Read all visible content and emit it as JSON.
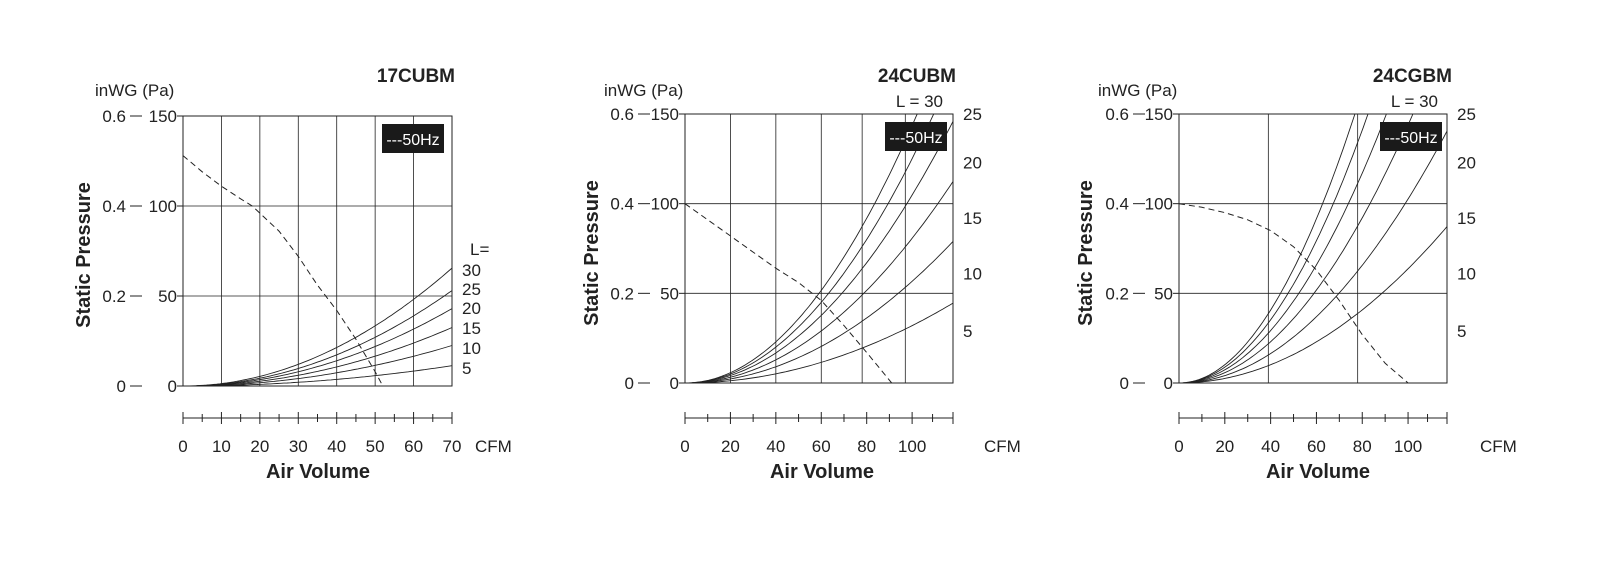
{
  "colors": {
    "ink": "#222222",
    "legend_bg": "#1a1a1a",
    "legend_text": "#ffffff"
  },
  "chart_data": [
    {
      "type": "line",
      "title": "17CUBM",
      "xlabel": "Air Volume",
      "xunit": "CFM",
      "ylabel": "Static Pressure",
      "yunit": "inWG (Pa)",
      "xlim": [
        0,
        70
      ],
      "ylim_pa": [
        0,
        150
      ],
      "x_ticks": [
        0,
        10,
        20,
        30,
        40,
        50,
        60,
        70
      ],
      "x_tick_labels": [
        "0",
        "10",
        "20",
        "30",
        "40",
        "50",
        "60",
        "70"
      ],
      "y_ticks_pa": [
        0,
        50,
        100,
        150
      ],
      "y_tick_labels_pa": [
        "0",
        "50",
        "100",
        "150"
      ],
      "y_tick_labels_inwg": [
        "0",
        "0.2",
        "0.4",
        "0.6"
      ],
      "v_grid": [
        10,
        20,
        30,
        40,
        50,
        60
      ],
      "legend": "---50Hz",
      "l_header": "L=",
      "fan_curve": {
        "name": "50Hz",
        "style": "dashed",
        "x": [
          0,
          5,
          10,
          15,
          18,
          20,
          25,
          30,
          35,
          40,
          45,
          50,
          52
        ],
        "y": [
          128,
          119,
          111,
          104,
          100,
          96,
          86,
          72,
          56,
          42,
          26,
          8,
          0
        ]
      },
      "system_curves": [
        {
          "label": "30",
          "k": 0.01337
        },
        {
          "label": "25",
          "k": 0.01082
        },
        {
          "label": "20",
          "k": 0.00878
        },
        {
          "label": "15",
          "k": 0.00663
        },
        {
          "label": "10",
          "k": 0.00459
        },
        {
          "label": "5",
          "k": 0.0023
        }
      ]
    },
    {
      "type": "line",
      "title": "24CUBM",
      "xlabel": "Air Volume",
      "xunit": "CFM",
      "ylabel": "Static Pressure",
      "yunit": "inWG (Pa)",
      "xlim": [
        0,
        118
      ],
      "ylim_pa": [
        0,
        150
      ],
      "x_ticks": [
        0,
        20,
        40,
        60,
        80,
        100
      ],
      "x_tick_labels": [
        "0",
        "20",
        "40",
        "60",
        "80",
        "100"
      ],
      "y_ticks_pa": [
        0,
        50,
        100,
        150
      ],
      "y_tick_labels_pa": [
        "0",
        "50",
        "100",
        "150"
      ],
      "y_tick_labels_inwg": [
        "0",
        "0.2",
        "0.4",
        "0.6"
      ],
      "v_grid": [
        20,
        40,
        60,
        78,
        97
      ],
      "legend": "---50Hz",
      "l_header": "L = 30",
      "fan_curve": {
        "name": "50Hz",
        "style": "dashed",
        "x": [
          0,
          10,
          20,
          30,
          40,
          50,
          60,
          70,
          80,
          91
        ],
        "y": [
          100,
          91,
          82,
          73,
          64,
          56,
          46,
          32,
          17,
          0
        ]
      },
      "system_curves": [
        {
          "label": "30",
          "k": 0.01435
        },
        {
          "label": "25",
          "k": 0.01251
        },
        {
          "label": "20",
          "k": 0.01048
        },
        {
          "label": "15",
          "k": 0.00807
        },
        {
          "label": "10",
          "k": 0.00567
        },
        {
          "label": "5",
          "k": 0.0032
        }
      ],
      "right_labels": [
        {
          "text": "25",
          "y": 150
        },
        {
          "text": "20",
          "y": 123
        },
        {
          "text": "15",
          "y": 92
        },
        {
          "text": "10",
          "y": 61
        },
        {
          "text": "5",
          "y": 29
        }
      ]
    },
    {
      "type": "line",
      "title": "24CGBM",
      "xlabel": "Air Volume",
      "xunit": "CFM",
      "ylabel": "Static Pressure",
      "yunit": "inWG (Pa)",
      "xlim": [
        0,
        117
      ],
      "ylim_pa": [
        0,
        150
      ],
      "x_ticks": [
        0,
        20,
        40,
        60,
        80,
        100
      ],
      "x_tick_labels": [
        "0",
        "20",
        "40",
        "60",
        "80",
        "100"
      ],
      "y_ticks_pa": [
        0,
        50,
        100,
        150
      ],
      "y_tick_labels_pa": [
        "0",
        "50",
        "100",
        "150"
      ],
      "y_tick_labels_inwg": [
        "0",
        "0.2",
        "0.4",
        "0.6"
      ],
      "v_grid": [
        39,
        78
      ],
      "legend": "---50Hz",
      "l_header": "L = 30",
      "fan_curve": {
        "name": "50Hz",
        "style": "dashed",
        "x": [
          0,
          10,
          20,
          30,
          40,
          50,
          60,
          70,
          80,
          90,
          100
        ],
        "y": [
          100,
          98,
          95,
          91,
          85,
          76,
          63,
          46,
          27,
          11,
          0
        ]
      },
      "system_curves": [
        {
          "label": "30",
          "k": 0.02544
        },
        {
          "label": "25",
          "k": 0.02204
        },
        {
          "label": "20",
          "k": 0.01829
        },
        {
          "label": "15",
          "k": 0.01439
        },
        {
          "label": "10",
          "k": 0.01026
        },
        {
          "label": "5",
          "k": 0.00637
        }
      ],
      "right_labels": [
        {
          "text": "25",
          "y": 150
        },
        {
          "text": "20",
          "y": 123
        },
        {
          "text": "15",
          "y": 92
        },
        {
          "text": "10",
          "y": 61
        },
        {
          "text": "5",
          "y": 29
        }
      ]
    }
  ]
}
